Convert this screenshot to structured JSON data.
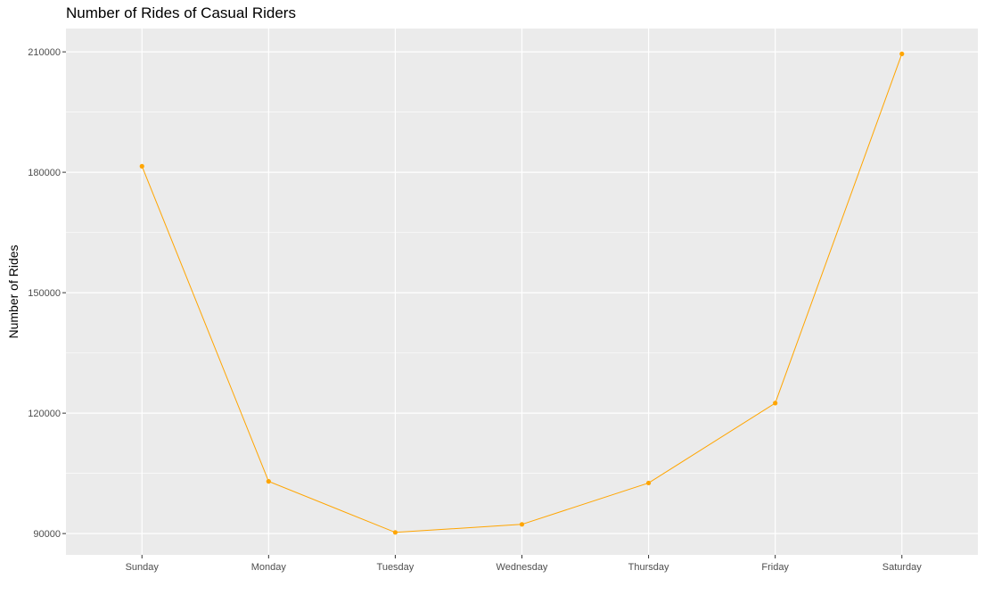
{
  "chart_data": {
    "type": "line",
    "title": "Number of Rides of Casual Riders",
    "xlabel": "",
    "ylabel": "Number of Rides",
    "categories": [
      "Sunday",
      "Monday",
      "Tuesday",
      "Wednesday",
      "Thursday",
      "Friday",
      "Saturday"
    ],
    "series": [
      {
        "values": [
          181500,
          103000,
          90300,
          92300,
          102600,
          122500,
          209500
        ]
      }
    ],
    "y_ticks": [
      90000,
      120000,
      150000,
      180000,
      210000
    ],
    "y_tick_labels": [
      "90000",
      "120000",
      "150000",
      "180000",
      "210000"
    ],
    "ylim": [
      84700,
      215800
    ],
    "grid": true,
    "colors": {
      "line": "#FFA500",
      "panel_background": "#EBEBEB",
      "grid": "#FFFFFF",
      "tick_text": "#4D4D4D"
    }
  }
}
